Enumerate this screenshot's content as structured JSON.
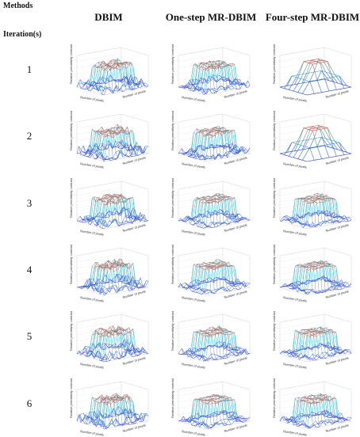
{
  "header": {
    "methods_label": "Methods",
    "iterations_label": "Iteration(s)"
  },
  "columns": [
    {
      "label": "DBIM"
    },
    {
      "label": "One-step MR-DBIM"
    },
    {
      "label": "Four-step MR-DBIM"
    }
  ],
  "rows": [
    {
      "label": "1"
    },
    {
      "label": "2"
    },
    {
      "label": "3"
    },
    {
      "label": "4"
    },
    {
      "label": "5"
    },
    {
      "label": "6"
    }
  ],
  "plot_text": {
    "axis_label_x": "Number of pixels",
    "axis_label_y": "Number of pixels",
    "axis_label_z": "Relative permittivity contrast"
  },
  "colors": {
    "low": "#2f3fd0",
    "mid": "#38c0c8",
    "high": "#e03a2a",
    "grid": "#c8c8c8"
  }
}
